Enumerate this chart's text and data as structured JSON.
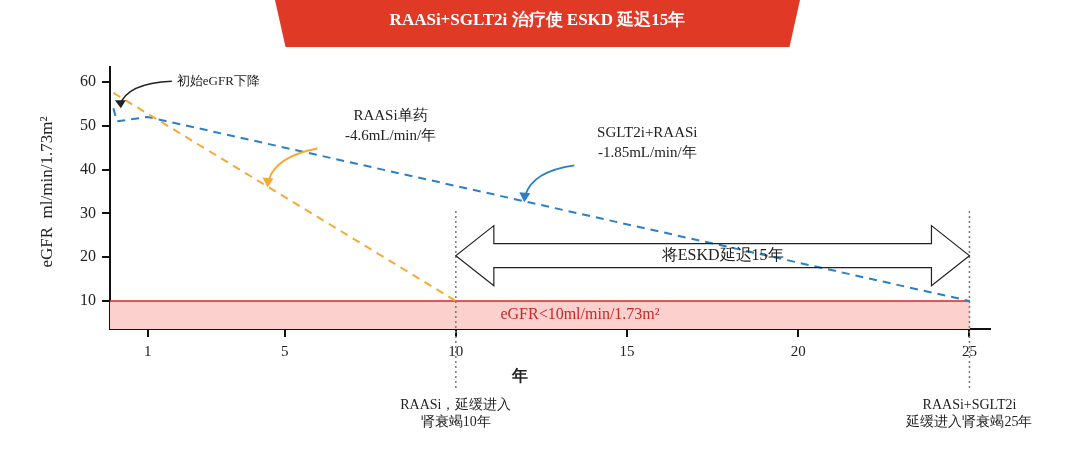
{
  "chart_data": {
    "type": "line",
    "title": "RAASi+SGLT2i 治疗使 ESKD 延迟15年",
    "xlabel": "年",
    "ylabel": "eGFR  ml/min/1.73m²",
    "series": [
      {
        "color": "#f6a935",
        "x": [
          0,
          10
        ],
        "values": [
          57.5,
          10
        ]
      },
      {
        "color": "#2a7fc8",
        "x": [
          0,
          0.1,
          1,
          25
        ],
        "values": [
          54,
          51,
          52,
          10
        ]
      }
    ],
    "xlim": [
      -0.1,
      25.6
    ],
    "xticks": [
      1,
      5,
      10,
      15,
      20,
      25
    ],
    "ylim": [
      3.6,
      63.4
    ],
    "yticks": [
      10,
      20,
      30,
      40,
      50,
      60
    ],
    "grid": false,
    "legend": false,
    "marker": "none",
    "line_style": "dashed",
    "bands": [
      {
        "axis": "y",
        "from": 3.6,
        "to": 10,
        "label": "eGFR<10ml/min/1.73m²",
        "color": "#fbd0cd"
      }
    ],
    "ref_lines": [
      {
        "axis": "y",
        "value": 10,
        "label": null,
        "color": "#d7262b",
        "line_style": "solid"
      },
      {
        "axis": "x",
        "value": 10,
        "label": "RAASi，延缓进入肾衰竭10年",
        "color": "#777777",
        "line_style": "dotted"
      },
      {
        "axis": "x",
        "value": 25,
        "label": "RAASi+SGLT2i 延缓进入肾衰竭25年",
        "color": "#777777",
        "line_style": "dotted"
      }
    ],
    "annotations": [
      {
        "text": "初始eGFR下降",
        "x": 0.1,
        "y": 54
      },
      "RAASi单药\n-4.6mL/min/年",
      "SGLT2i+RAASi\n-1.85mL/min/年",
      "将ESKD延迟15年"
    ]
  }
}
